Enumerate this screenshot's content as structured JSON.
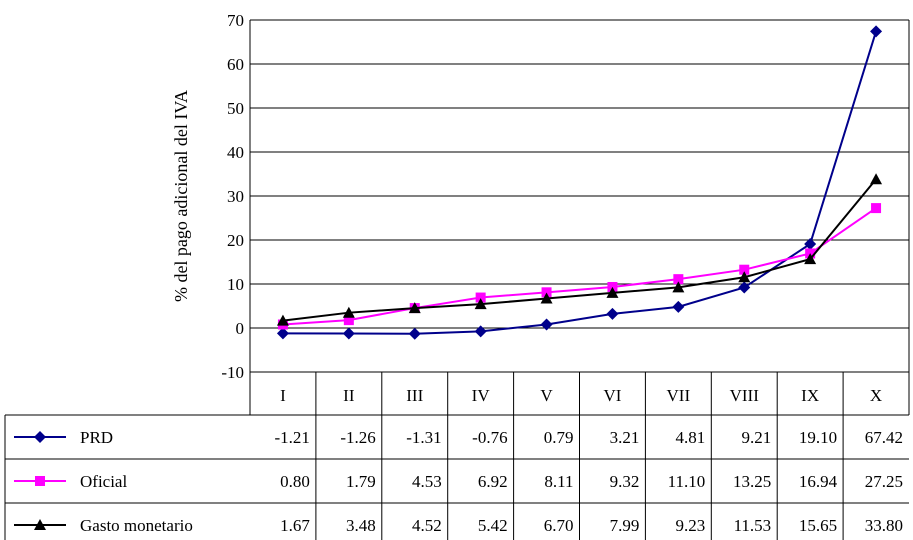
{
  "chart_data": {
    "type": "line",
    "title": "",
    "xlabel": "",
    "ylabel": "% del pago adicional del IVA",
    "ylim": [
      -10,
      70
    ],
    "yticks": [
      -10,
      0,
      10,
      20,
      30,
      40,
      50,
      60,
      70
    ],
    "grid": true,
    "legend": "data-table-left",
    "categories": [
      "I",
      "II",
      "III",
      "IV",
      "V",
      "VI",
      "VII",
      "VIII",
      "IX",
      "X"
    ],
    "series": [
      {
        "name": "PRD",
        "color": "#00008b",
        "marker": "diamond",
        "values": [
          -1.21,
          -1.26,
          -1.31,
          -0.76,
          0.79,
          3.21,
          4.81,
          9.21,
          19.1,
          67.42
        ],
        "labels": [
          "-1.21",
          "-1.26",
          "-1.31",
          "-0.76",
          "0.79",
          "3.21",
          "4.81",
          "9.21",
          "19.10",
          "67.42"
        ]
      },
      {
        "name": "Oficial",
        "color": "#ff00ff",
        "marker": "square",
        "values": [
          0.8,
          1.79,
          4.53,
          6.92,
          8.11,
          9.32,
          11.1,
          13.25,
          16.94,
          27.25
        ],
        "labels": [
          "0.80",
          "1.79",
          "4.53",
          "6.92",
          "8.11",
          "9.32",
          "11.10",
          "13.25",
          "16.94",
          "27.25"
        ]
      },
      {
        "name": "Gasto monetario",
        "color": "#000000",
        "marker": "triangle",
        "values": [
          1.67,
          3.48,
          4.52,
          5.42,
          6.7,
          7.99,
          9.23,
          11.53,
          15.65,
          33.8
        ],
        "labels": [
          "1.67",
          "3.48",
          "4.52",
          "5.42",
          "6.70",
          "7.99",
          "9.23",
          "11.53",
          "15.65",
          "33.80"
        ]
      }
    ]
  }
}
